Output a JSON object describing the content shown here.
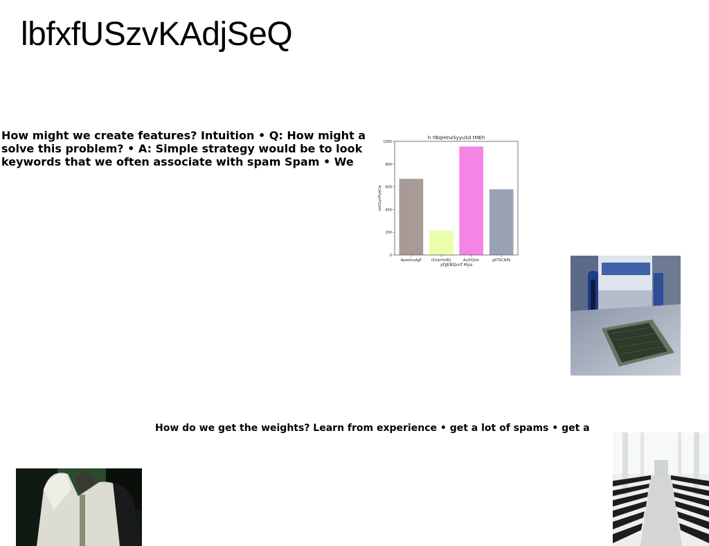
{
  "slide": {
    "title": "lbfxfUSzvKAdjSeQ",
    "paragraph_1": "How might we create features? Intuition • Q: How might a solve this problem? • A: Simple strategy would be to look keywords that we often associate with spam Spam • We",
    "paragraph_2": "How do we get the weights? Learn from experience • get a lot of spams • get a"
  },
  "images": [
    {
      "name": "courtyard-photo"
    },
    {
      "name": "person-photo"
    },
    {
      "name": "church-interior-photo"
    }
  ],
  "chart_data": {
    "type": "bar",
    "title": "h YBqHmxSyyuSd tMEh",
    "xlabel": "yDJEBQvnf Mya",
    "ylabel": "zelCbyvPywCw",
    "categories": [
      "ApieUnuAgF",
      "lZmjrrfmEU",
      "AuQYJVm",
      "gXTDCNPk"
    ],
    "values": [
      670,
      215,
      955,
      578
    ],
    "colors": [
      "#a89a96",
      "#eaffaa",
      "#f485e6",
      "#9aa2b6"
    ],
    "ylim": [
      0,
      1000
    ],
    "yticks": [
      "0",
      "200",
      "400",
      "600",
      "800",
      "1000"
    ],
    "ytick_values": [
      0,
      200,
      400,
      600,
      800,
      1000
    ],
    "grid": false,
    "legend": "none"
  }
}
